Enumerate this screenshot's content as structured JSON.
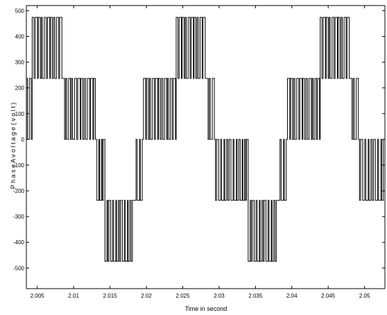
{
  "chart_data": {
    "type": "line",
    "title": "",
    "xlabel": "Time in second",
    "ylabel": "P h a s e   A   v o l t a g e   ( v o l t )",
    "xlim": [
      2.0035,
      2.0528
    ],
    "ylim": [
      -580,
      520
    ],
    "x_ticks": [
      2.005,
      2.01,
      2.015,
      2.02,
      2.025,
      2.03,
      2.035,
      2.04,
      2.045,
      2.05
    ],
    "x_tick_labels": [
      "2.005",
      "2.01",
      "2.015",
      "2.02",
      "2.025",
      "2.03",
      "2.035",
      "2.04",
      "2.045",
      "2.05"
    ],
    "y_ticks": [
      500,
      400,
      300,
      200,
      100,
      0,
      -100,
      -200,
      -300,
      -400,
      -500
    ],
    "y_tick_labels": [
      "500",
      "400",
      "300",
      "200",
      "100",
      "0",
      "-100",
      "-200",
      "-300",
      "-400",
      "-500"
    ],
    "grid": false,
    "series": [
      {
        "color": "#000000",
        "levels": [
          0,
          237,
          474,
          -237,
          -474
        ],
        "fundamental_period": 0.02,
        "segments": [
          {
            "x0": 2.0035,
            "x1": 2.0043,
            "low": 0,
            "high": 237
          },
          {
            "x0": 2.0043,
            "x1": 2.0085,
            "low": 237,
            "high": 474
          },
          {
            "x0": 2.0085,
            "x1": 2.0097,
            "low": 0,
            "high": 237
          },
          {
            "x0": 2.0097,
            "x1": 2.0132,
            "low": 0,
            "high": 237
          },
          {
            "x0": 2.0132,
            "x1": 2.0143,
            "low": -237,
            "high": 0
          },
          {
            "x0": 2.0143,
            "x1": 2.0183,
            "low": -474,
            "high": -237
          },
          {
            "x0": 2.0183,
            "x1": 2.0196,
            "low": -237,
            "high": 0
          },
          {
            "x0": 2.0196,
            "x1": 2.0229,
            "low": 0,
            "high": 237
          },
          {
            "x0": 2.0229,
            "x1": 2.0241,
            "low": 0,
            "high": 237
          },
          {
            "x0": 2.0241,
            "x1": 2.0282,
            "low": 237,
            "high": 474
          },
          {
            "x0": 2.0282,
            "x1": 2.0295,
            "low": 0,
            "high": 237
          },
          {
            "x0": 2.0295,
            "x1": 2.0329,
            "low": -237,
            "high": 0
          },
          {
            "x0": 2.0329,
            "x1": 2.034,
            "low": -237,
            "high": 0
          },
          {
            "x0": 2.034,
            "x1": 2.0381,
            "low": -474,
            "high": -237
          },
          {
            "x0": 2.0381,
            "x1": 2.0394,
            "low": -237,
            "high": 0
          },
          {
            "x0": 2.0394,
            "x1": 2.0428,
            "low": 0,
            "high": 237
          },
          {
            "x0": 2.0428,
            "x1": 2.0439,
            "low": 0,
            "high": 237
          },
          {
            "x0": 2.0439,
            "x1": 2.048,
            "low": 237,
            "high": 474
          },
          {
            "x0": 2.048,
            "x1": 2.0493,
            "low": 0,
            "high": 237
          },
          {
            "x0": 2.0493,
            "x1": 2.0528,
            "low": -237,
            "high": 0
          }
        ]
      }
    ]
  }
}
